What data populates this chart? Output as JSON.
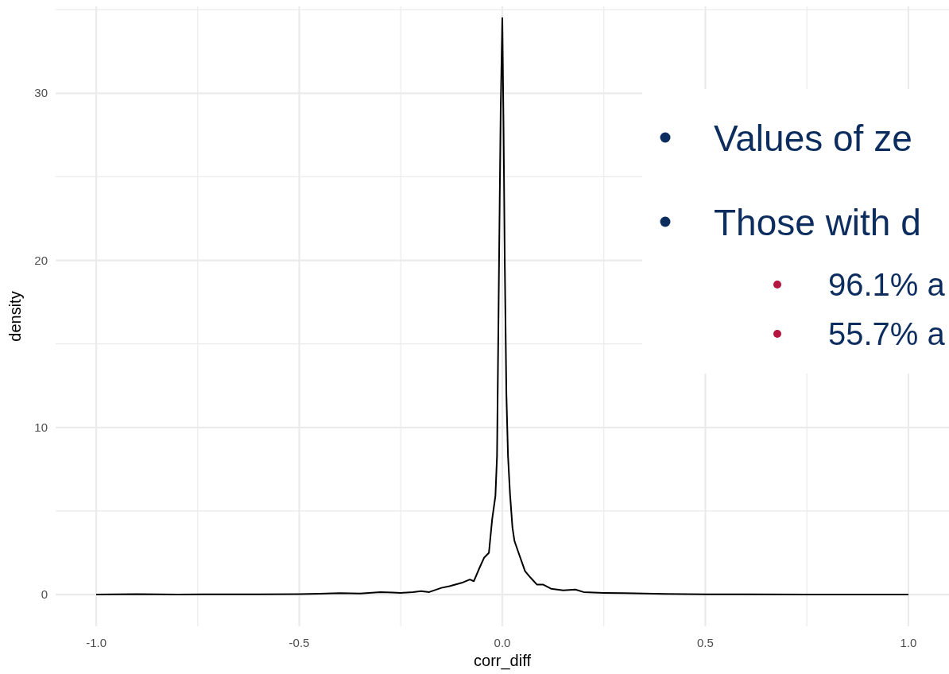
{
  "chart_data": {
    "type": "line",
    "xlabel": "corr_diff",
    "ylabel": "density",
    "xlim": [
      -1.1,
      1.1
    ],
    "ylim": [
      -1.9,
      35.2
    ],
    "xticks": [
      {
        "value": -1,
        "label": "-1.0"
      },
      {
        "value": -0.5,
        "label": "-0.5"
      },
      {
        "value": 0,
        "label": "0.0"
      },
      {
        "value": 0.5,
        "label": "0.5"
      },
      {
        "value": 1,
        "label": "1.0"
      }
    ],
    "yticks": [
      0,
      10,
      20,
      30
    ],
    "grid": true,
    "series": [
      {
        "color": "#000000",
        "x": [
          -1,
          -0.9,
          -0.8,
          -0.7,
          -0.6,
          -0.5,
          -0.45,
          -0.4,
          -0.35,
          -0.3,
          -0.27,
          -0.25,
          -0.22,
          -0.2,
          -0.18,
          -0.15,
          -0.13,
          -0.1,
          -0.08,
          -0.07,
          -0.058,
          -0.045,
          -0.033,
          -0.025,
          -0.017,
          -0.013,
          -0.008,
          -0.004,
          0,
          0.003,
          0.006,
          0.01,
          0.014,
          0.019,
          0.025,
          0.03,
          0.04,
          0.056,
          0.07,
          0.085,
          0.1,
          0.12,
          0.15,
          0.18,
          0.2,
          0.25,
          0.3,
          0.4,
          0.5,
          0.6,
          0.8,
          1
        ],
        "values": [
          0,
          0.03,
          0,
          0.02,
          0.02,
          0.03,
          0.05,
          0.08,
          0.06,
          0.15,
          0.12,
          0.1,
          0.15,
          0.2,
          0.15,
          0.4,
          0.5,
          0.7,
          0.9,
          0.8,
          1.5,
          2.2,
          2.5,
          4.5,
          5.9,
          8.3,
          20,
          29,
          34.5,
          28,
          20,
          12,
          8.3,
          6,
          4,
          3.2,
          2.5,
          1.4,
          1,
          0.6,
          0.6,
          0.35,
          0.25,
          0.3,
          0.15,
          0.1,
          0.08,
          0.04,
          0.02,
          0.01,
          0,
          0
        ]
      }
    ],
    "annotations": [
      "Values of ze",
      "Those with d",
      "96.1% a",
      "55.7% a"
    ]
  }
}
